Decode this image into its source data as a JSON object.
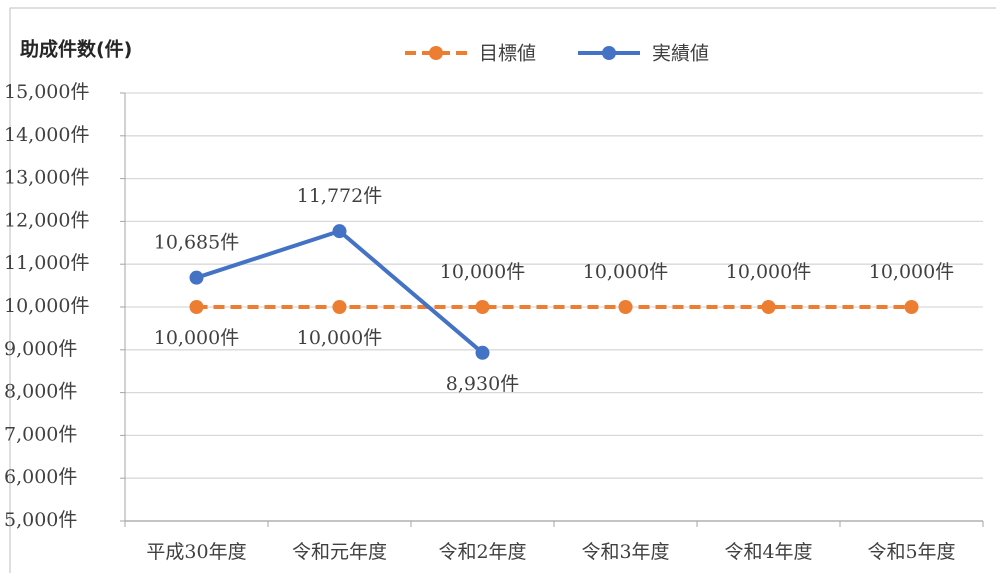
{
  "chart_data": {
    "type": "line",
    "ylabel": "助成件数(件)",
    "categories": [
      "平成30年度",
      "令和元年度",
      "令和2年度",
      "令和3年度",
      "令和4年度",
      "令和5年度"
    ],
    "series": [
      {
        "name": "目標値",
        "color": "#ed7d31",
        "dashed": true,
        "values": [
          10000,
          10000,
          10000,
          10000,
          10000,
          10000
        ],
        "value_labels": [
          "10,000件",
          "10,000件",
          "10,000件",
          "10,000件",
          "10,000件",
          "10,000件"
        ]
      },
      {
        "name": "実績値",
        "color": "#4472c4",
        "dashed": false,
        "values": [
          10685,
          11772,
          8930,
          null,
          null,
          null
        ],
        "value_labels": [
          "10,685件",
          "11,772件",
          "8,930件",
          null,
          null,
          null
        ]
      }
    ],
    "ylim": [
      5000,
      15000
    ],
    "yticks": [
      {
        "value": 5000,
        "label": "5,000件"
      },
      {
        "value": 6000,
        "label": "6,000件"
      },
      {
        "value": 7000,
        "label": "7,000件"
      },
      {
        "value": 8000,
        "label": "8,000件"
      },
      {
        "value": 9000,
        "label": "9,000件"
      },
      {
        "value": 10000,
        "label": "10,000件"
      },
      {
        "value": 11000,
        "label": "11,000件"
      },
      {
        "value": 12000,
        "label": "12,000件"
      },
      {
        "value": 13000,
        "label": "13,000件"
      },
      {
        "value": 14000,
        "label": "14,000件"
      },
      {
        "value": 15000,
        "label": "15,000件"
      }
    ],
    "grid": true,
    "legend": "top"
  }
}
